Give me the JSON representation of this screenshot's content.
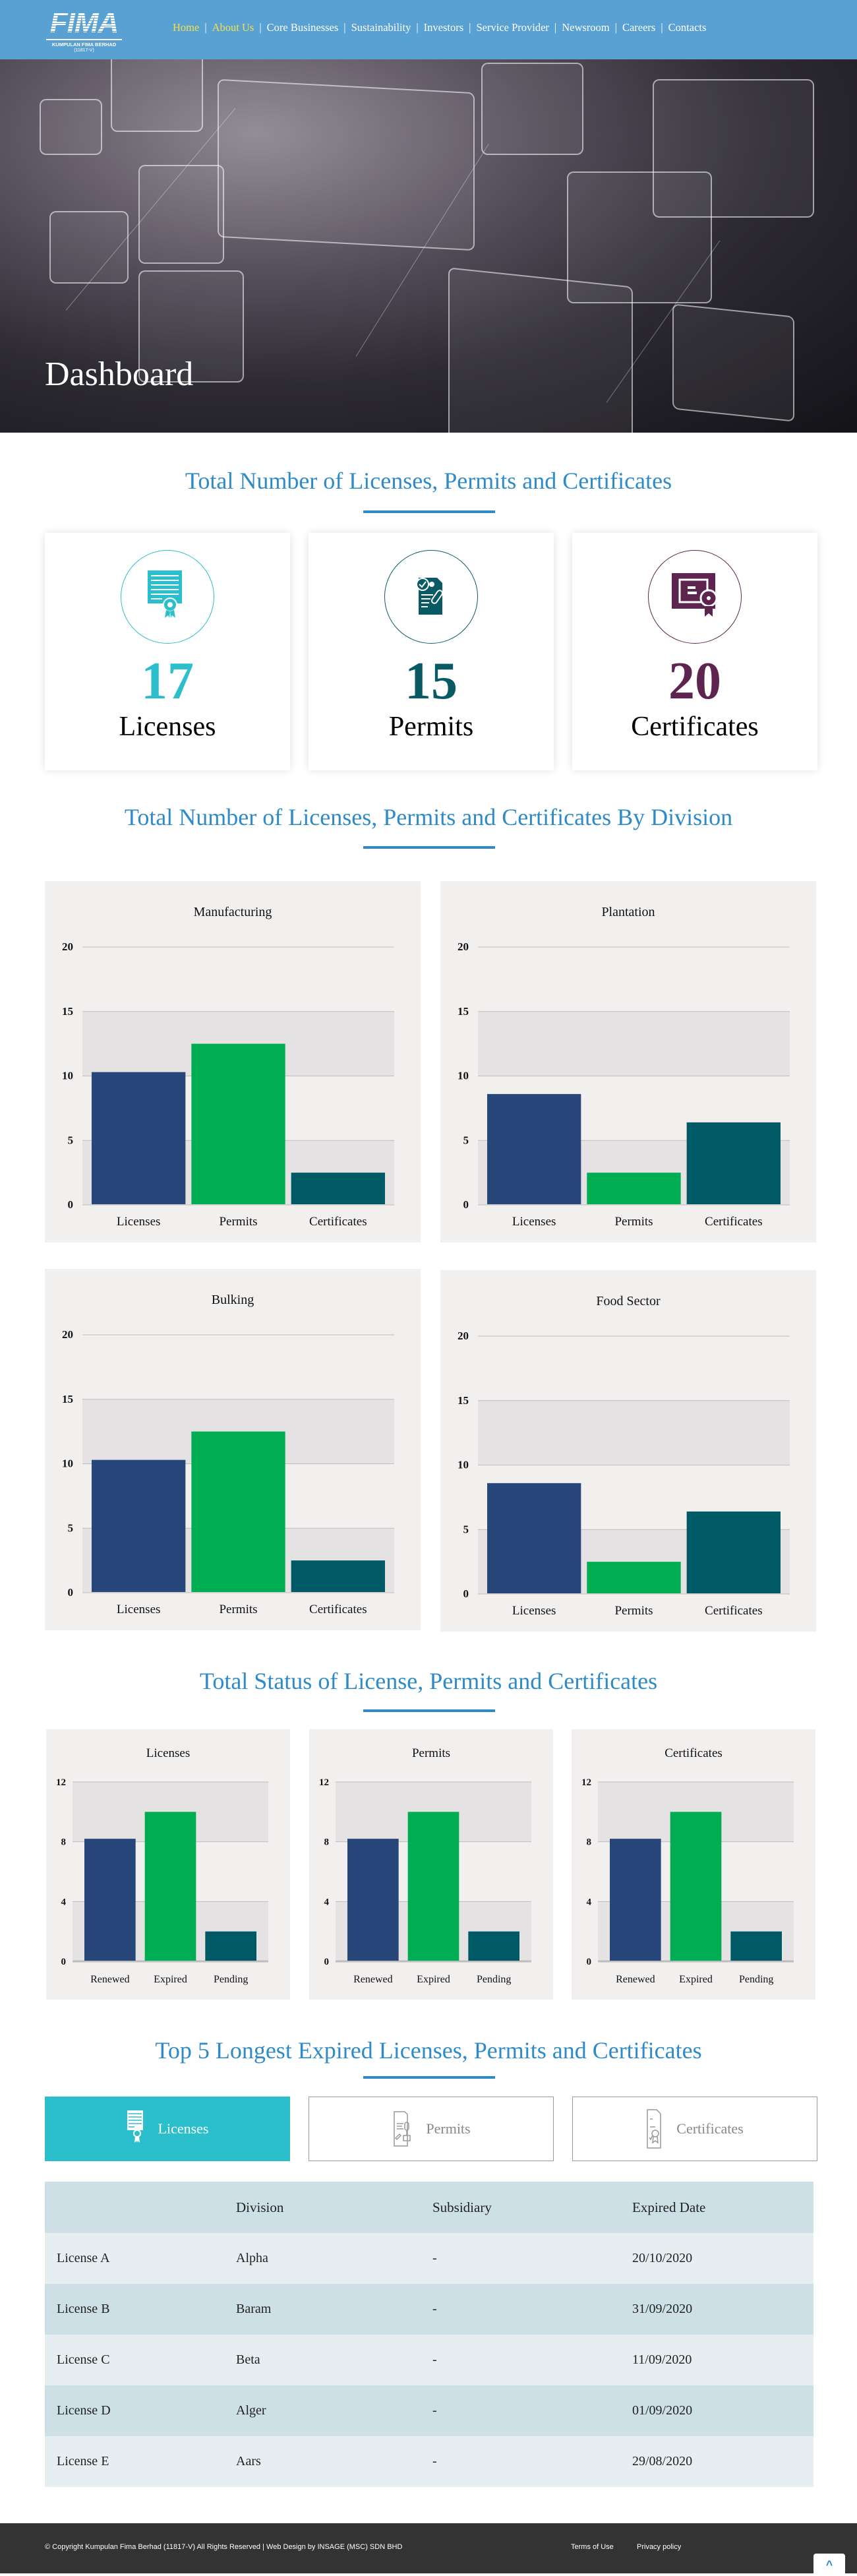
{
  "header": {
    "logo": {
      "mark": "FIMA",
      "company": "KUMPULAN FIMA BERHAD",
      "reg_no": "(11817-V)"
    },
    "nav": [
      {
        "label": "Home",
        "active": true
      },
      {
        "label": "About Us",
        "active": false
      },
      {
        "label": "Core Businesses",
        "active": false
      },
      {
        "label": "Sustainability",
        "active": false
      },
      {
        "label": "Investors",
        "active": false
      },
      {
        "label": "Service Provider",
        "active": false
      },
      {
        "label": "Newsroom",
        "active": false
      },
      {
        "label": "Careers",
        "active": false
      },
      {
        "label": "Contacts",
        "active": false
      }
    ],
    "separator": "|"
  },
  "hero": {
    "title": "Dashboard"
  },
  "summary": {
    "title": "Total Number of Licenses, Permits and Certificates",
    "cards": [
      {
        "count": "17",
        "label": "Licenses",
        "icon": "license-certificate-icon",
        "color": "#2bbfcc"
      },
      {
        "count": "15",
        "label": "Permits",
        "icon": "permit-document-stamp-icon",
        "color": "#0a5a66"
      },
      {
        "count": "20",
        "label": "Certificates",
        "icon": "certificate-ribbon-icon",
        "color": "#5e2450"
      }
    ]
  },
  "by_division": {
    "title": "Total Number of Licenses, Permits and Certificates By Division"
  },
  "status": {
    "title": "Total Status of License, Permits and Certificates"
  },
  "colors": {
    "licenses": "#27467a",
    "permits": "#00ad52",
    "certificates": "#005a66",
    "band": "#e4e2e3",
    "panel": "#f2efef",
    "heading": "#2f8bc8"
  },
  "chart_data": [
    {
      "type": "bar",
      "title": "Manufacturing",
      "categories": [
        "Licenses",
        "Permits",
        "Certificates"
      ],
      "values": [
        10.3,
        12.5,
        2.5
      ],
      "ylim": [
        0,
        20
      ],
      "yticks": [
        0,
        5,
        10,
        15,
        20
      ],
      "xlabel": "",
      "ylabel": "",
      "grid": true,
      "legend": "none"
    },
    {
      "type": "bar",
      "title": "Plantation",
      "categories": [
        "Licenses",
        "Permits",
        "Certificates"
      ],
      "values": [
        8.6,
        2.5,
        6.4
      ],
      "ylim": [
        0,
        20
      ],
      "yticks": [
        0,
        5,
        10,
        15,
        20
      ],
      "xlabel": "",
      "ylabel": "",
      "grid": true,
      "legend": "none"
    },
    {
      "type": "bar",
      "title": "Bulking",
      "categories": [
        "Licenses",
        "Permits",
        "Certificates"
      ],
      "values": [
        10.3,
        12.5,
        2.5
      ],
      "ylim": [
        0,
        20
      ],
      "yticks": [
        0,
        5,
        10,
        15,
        20
      ],
      "xlabel": "",
      "ylabel": "",
      "grid": true,
      "legend": "none"
    },
    {
      "type": "bar",
      "title": "Food Sector",
      "categories": [
        "Licenses",
        "Permits",
        "Certificates"
      ],
      "values": [
        8.6,
        2.5,
        6.4
      ],
      "ylim": [
        0,
        20
      ],
      "yticks": [
        0,
        5,
        10,
        15,
        20
      ],
      "xlabel": "",
      "ylabel": "",
      "grid": true,
      "legend": "none"
    },
    {
      "type": "bar",
      "title": "Licenses",
      "categories": [
        "Renewed",
        "Expired",
        "Pending"
      ],
      "values": [
        8.2,
        10,
        2
      ],
      "ylim": [
        0,
        12
      ],
      "yticks": [
        0,
        4,
        8,
        12
      ],
      "xlabel": "",
      "ylabel": "",
      "grid": true,
      "legend": "none"
    },
    {
      "type": "bar",
      "title": "Permits",
      "categories": [
        "Renewed",
        "Expired",
        "Pending"
      ],
      "values": [
        8.2,
        10,
        2
      ],
      "ylim": [
        0,
        12
      ],
      "yticks": [
        0,
        4,
        8,
        12
      ],
      "xlabel": "",
      "ylabel": "",
      "grid": true,
      "legend": "none"
    },
    {
      "type": "bar",
      "title": "Certificates",
      "categories": [
        "Renewed",
        "Expired",
        "Pending"
      ],
      "values": [
        8.2,
        10,
        2
      ],
      "ylim": [
        0,
        12
      ],
      "yticks": [
        0,
        4,
        8,
        12
      ],
      "xlabel": "",
      "ylabel": "",
      "grid": true,
      "legend": "none"
    }
  ],
  "expired": {
    "title": "Top 5 Longest Expired Licenses, Permits and Certificates",
    "tabs": [
      {
        "label": "Licenses",
        "active": true,
        "icon": "license-icon"
      },
      {
        "label": "Permits",
        "active": false,
        "icon": "permit-icon"
      },
      {
        "label": "Certificates",
        "active": false,
        "icon": "certificate-icon"
      }
    ],
    "table": {
      "headers": [
        "",
        "Division",
        "Subsidiary",
        "Expired Date"
      ],
      "rows": [
        [
          "License A",
          "Alpha",
          "-",
          "20/10/2020"
        ],
        [
          "License B",
          "Baram",
          "-",
          "31/09/2020"
        ],
        [
          "License C",
          "Beta",
          "-",
          "11/09/2020"
        ],
        [
          "License D",
          "Alger",
          "-",
          "01/09/2020"
        ],
        [
          "License E",
          "Aars",
          "-",
          "29/08/2020"
        ]
      ]
    }
  },
  "footer": {
    "copyright": "© Copyright Kumpulan Fima Berhad (11817-V) All Rights Reserved | Web Design by INSAGE (MSC) SDN BHD",
    "terms": "Terms of Use",
    "privacy": "Privacy policy",
    "back_to_top": "^"
  }
}
